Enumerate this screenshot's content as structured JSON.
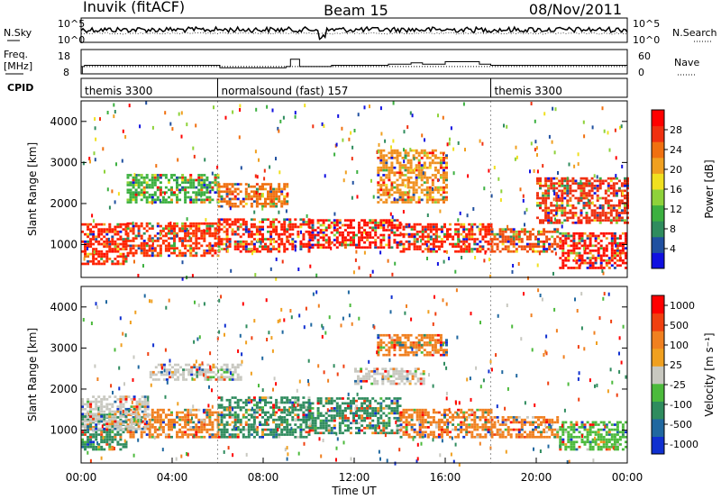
{
  "chart_data": [
    {
      "type": "line",
      "name_panel": "noise",
      "title_left": "Inuvik (fitACF)",
      "title_center": "Beam 15",
      "title_right": "08/Nov/2011",
      "left_label": "N.Sky",
      "right_label": "N.Search",
      "left_ticks": [
        "10^5",
        "10^0"
      ],
      "right_ticks": [
        "10^5",
        "10^0"
      ]
    },
    {
      "type": "line",
      "name_panel": "frequency",
      "left_label_line1": "Freq.",
      "left_label_line2": "[MHz]",
      "right_label": "Nave",
      "left_ticks": [
        "18",
        "8"
      ],
      "right_ticks": [
        "60",
        "0"
      ],
      "freq_x_hours": [
        0,
        0.05,
        0.15,
        6,
        6.1,
        8.5,
        9.0,
        9.2,
        9.4,
        9.6,
        11,
        13.5,
        14.5,
        15,
        16,
        17,
        17.5,
        18,
        24
      ],
      "freq_mhz": [
        8,
        11,
        11.5,
        11.5,
        10.5,
        10.5,
        11,
        14,
        14,
        11,
        11.5,
        12,
        12.5,
        12,
        13,
        13,
        12,
        11.5,
        11.5
      ]
    },
    {
      "type": "table",
      "name_panel": "cpid",
      "label": "CPID",
      "segments": [
        {
          "start_hour": 0,
          "text": "themis 3300"
        },
        {
          "start_hour": 6,
          "text": "normalsound (fast) 157"
        },
        {
          "start_hour": 18,
          "text": "themis 3300"
        }
      ]
    },
    {
      "type": "heatmap",
      "name_panel": "power",
      "ylabel": "Slant Range [km]",
      "yticks": [
        1000,
        2000,
        3000,
        4000
      ],
      "ylim": [
        200,
        4500
      ],
      "xlim": [
        0,
        24
      ],
      "colorbar_label": "Power [dB]",
      "colorbar_ticks": [
        "4",
        "8",
        "12",
        "16",
        "20",
        "24",
        "28"
      ],
      "colorbar_colors": [
        "#1010e0",
        "#2050a0",
        "#2f8c5e",
        "#3cb040",
        "#8ed23a",
        "#f0e020",
        "#f0a020",
        "#f07010",
        "#f03010",
        "#ff0000"
      ],
      "bands": [
        {
          "h0": 0,
          "h1": 2,
          "r0": 500,
          "r1": 1500,
          "color": "#ff2000"
        },
        {
          "h0": 2,
          "h1": 6,
          "r0": 700,
          "r1": 1500,
          "color": "#ff3000"
        },
        {
          "h0": 6,
          "h1": 10,
          "r0": 800,
          "r1": 1600,
          "color": "#ff2000"
        },
        {
          "h0": 10,
          "h1": 14,
          "r0": 900,
          "r1": 1600,
          "color": "#ff1000"
        },
        {
          "h0": 14,
          "h1": 18,
          "r0": 800,
          "r1": 1500,
          "color": "#ff2000"
        },
        {
          "h0": 18,
          "h1": 21,
          "r0": 800,
          "r1": 1400,
          "color": "#f05010"
        },
        {
          "h0": 21,
          "h1": 24,
          "r0": 400,
          "r1": 1300,
          "color": "#ff1000"
        },
        {
          "h0": 2,
          "h1": 6,
          "r0": 2000,
          "r1": 2700,
          "color": "#3cb040"
        },
        {
          "h0": 6,
          "h1": 9,
          "r0": 1900,
          "r1": 2500,
          "color": "#f07010"
        },
        {
          "h0": 13,
          "h1": 16,
          "r0": 2000,
          "r1": 3300,
          "color": "#f09020"
        },
        {
          "h0": 20,
          "h1": 24,
          "r0": 1500,
          "r1": 2600,
          "color": "#f03010"
        }
      ]
    },
    {
      "type": "heatmap",
      "name_panel": "velocity",
      "ylabel": "Slant Range [km]",
      "yticks": [
        1000,
        2000,
        3000,
        4000
      ],
      "ylim": [
        200,
        4500
      ],
      "xlim": [
        0,
        24
      ],
      "xticks": [
        "00:00",
        "04:00",
        "08:00",
        "12:00",
        "16:00",
        "20:00",
        "00:00"
      ],
      "xlabel": "Time UT",
      "colorbar_label": "Velocity [m s⁻¹]",
      "colorbar_ticks": [
        "1000",
        "500",
        "100",
        "25",
        "-25",
        "-100",
        "-500",
        "-1000"
      ],
      "colorbar_colors": [
        "#1030d0",
        "#2068a0",
        "#2f8c5e",
        "#4cba3c",
        "#c8c8c0",
        "#f0a020",
        "#f08020",
        "#f04010",
        "#ff0000"
      ],
      "bands": [
        {
          "h0": 0,
          "h1": 2,
          "r0": 500,
          "r1": 1400,
          "color": "#2f8c5e"
        },
        {
          "h0": 2,
          "h1": 6,
          "r0": 800,
          "r1": 1500,
          "color": "#f08020"
        },
        {
          "h0": 6,
          "h1": 10,
          "r0": 800,
          "r1": 1800,
          "color": "#2f8c5e"
        },
        {
          "h0": 10,
          "h1": 14,
          "r0": 900,
          "r1": 1800,
          "color": "#2f8c5e"
        },
        {
          "h0": 14,
          "h1": 18,
          "r0": 800,
          "r1": 1500,
          "color": "#f08020"
        },
        {
          "h0": 18,
          "h1": 21,
          "r0": 800,
          "r1": 1300,
          "color": "#f08020"
        },
        {
          "h0": 21,
          "h1": 24,
          "r0": 500,
          "r1": 1200,
          "color": "#4cba3c"
        },
        {
          "h0": 3,
          "h1": 7,
          "r0": 2200,
          "r1": 2600,
          "color": "#c8c8c0"
        },
        {
          "h0": 12,
          "h1": 15,
          "r0": 2100,
          "r1": 2500,
          "color": "#c8c8c0"
        },
        {
          "h0": 13,
          "h1": 16,
          "r0": 2800,
          "r1": 3300,
          "color": "#f08020"
        },
        {
          "h0": 0,
          "h1": 3,
          "r0": 1000,
          "r1": 1800,
          "color": "#c8c8c0"
        }
      ]
    }
  ]
}
